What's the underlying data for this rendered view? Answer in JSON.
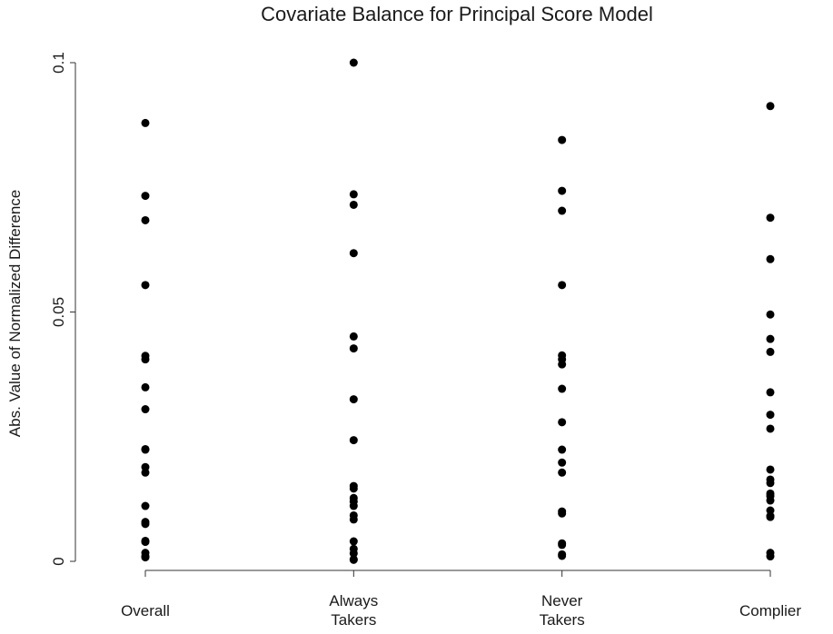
{
  "chart_data": {
    "type": "scatter",
    "title": "Covariate Balance for Principal Score Model",
    "xlabel": "",
    "ylabel": "Abs. Value of Normalized Difference",
    "ylim": [
      0,
      0.1
    ],
    "yticks": [
      "0",
      "0.05",
      "0.1"
    ],
    "grid": false,
    "categories": [
      [
        "Overall"
      ],
      [
        "Always",
        "Takers"
      ],
      [
        "Never",
        "Takers"
      ],
      [
        "Complier"
      ]
    ],
    "series": [
      {
        "values": [
          0.0879,
          0.0733,
          0.0684,
          0.0554,
          0.0412,
          0.0405,
          0.0349,
          0.0305,
          0.0225,
          0.0224,
          0.0189,
          0.0178,
          0.0111,
          0.0079,
          0.0075,
          0.0041,
          0.0039,
          0.0017,
          0.001,
          0.0008
        ]
      },
      {
        "values": [
          0.1,
          0.0736,
          0.0715,
          0.0618,
          0.0451,
          0.0427,
          0.0325,
          0.0243,
          0.0151,
          0.0146,
          0.0127,
          0.012,
          0.0111,
          0.0092,
          0.0084,
          0.004,
          0.0025,
          0.0016,
          0.0004,
          0.0003
        ]
      },
      {
        "values": [
          0.0845,
          0.0743,
          0.0703,
          0.0554,
          0.0413,
          0.0405,
          0.0395,
          0.0346,
          0.0279,
          0.0224,
          0.0198,
          0.0178,
          0.01,
          0.0096,
          0.0036,
          0.0033,
          0.0014,
          0.0011
        ]
      },
      {
        "values": [
          0.0913,
          0.0689,
          0.0606,
          0.0495,
          0.0446,
          0.042,
          0.0339,
          0.0294,
          0.0266,
          0.0184,
          0.0164,
          0.0157,
          0.0136,
          0.0131,
          0.0122,
          0.0102,
          0.0091,
          0.0089,
          0.0017,
          0.001
        ]
      }
    ]
  }
}
